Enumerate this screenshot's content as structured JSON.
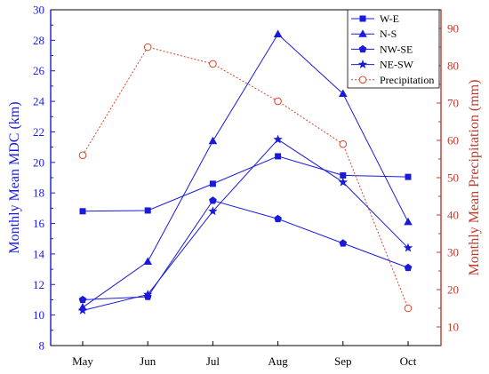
{
  "chart_data": {
    "type": "line",
    "categories": [
      "May",
      "Jun",
      "Jul",
      "Aug",
      "Sep",
      "Oct"
    ],
    "ylabel_left": "Monthly Mean MDC (km)",
    "ylabel_right": "Monthly Mean Precipitation (mm)",
    "ylim_left": [
      8,
      30
    ],
    "yticks_left": [
      8,
      10,
      12,
      14,
      16,
      18,
      20,
      22,
      24,
      26,
      28,
      30
    ],
    "ylim_right": [
      5,
      95
    ],
    "yticks_right": [
      10,
      20,
      30,
      40,
      50,
      60,
      70,
      80,
      90
    ],
    "left_axis_color": "#1a1adb",
    "right_axis_color": "#c0392b",
    "legend_position": "top-right",
    "grid": false,
    "series": [
      {
        "name": "W-E",
        "axis": "left",
        "marker": "square",
        "color": "#1a1adb",
        "line": "solid",
        "values": [
          16.8,
          16.85,
          18.6,
          20.4,
          19.15,
          19.05
        ]
      },
      {
        "name": "N-S",
        "axis": "left",
        "marker": "triangle",
        "color": "#1a1adb",
        "line": "solid",
        "values": [
          10.5,
          13.5,
          21.4,
          28.4,
          24.5,
          16.1
        ]
      },
      {
        "name": "NW-SE",
        "axis": "left",
        "marker": "pentagon",
        "color": "#1a1adb",
        "line": "solid",
        "values": [
          11.0,
          11.2,
          17.5,
          16.3,
          14.7,
          13.1
        ]
      },
      {
        "name": "NE-SW",
        "axis": "left",
        "marker": "star",
        "color": "#1a1adb",
        "line": "solid",
        "values": [
          10.3,
          11.35,
          16.8,
          21.5,
          18.7,
          14.4
        ]
      },
      {
        "name": "Precipitation",
        "axis": "right",
        "marker": "open-circle",
        "color": "#d9442b",
        "line": "dotted",
        "values": [
          56,
          85,
          80.5,
          70.5,
          59,
          15
        ]
      }
    ]
  }
}
